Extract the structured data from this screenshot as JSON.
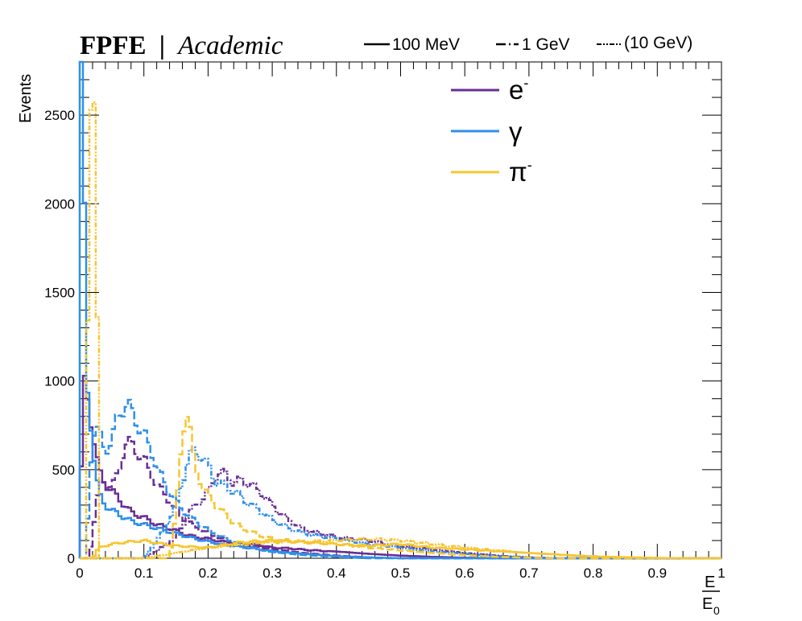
{
  "header": {
    "brand_bold": "FPFE",
    "brand_separator": "|",
    "brand_italic": "Academic"
  },
  "energy_legend": [
    {
      "label": "100 MeV",
      "style": "solid"
    },
    {
      "label": "1 GeV",
      "style": "dashed"
    },
    {
      "label": "(10 GeV)",
      "style": "dashdot"
    }
  ],
  "particle_legend": [
    {
      "label": "e",
      "sup": "-",
      "color": "#6a2f96"
    },
    {
      "label": "γ",
      "sup": "",
      "color": "#2f8fe8"
    },
    {
      "label": "π",
      "sup": "-",
      "color": "#f6c531"
    }
  ],
  "chart_data": {
    "type": "line",
    "title": "",
    "xlabel": "E",
    "xlabel_denominator": "E",
    "xlabel_denominator_sub": "0",
    "ylabel": "Events",
    "xlim": [
      0,
      1
    ],
    "ylim": [
      0,
      2800
    ],
    "xticks": [
      0,
      0.1,
      0.2,
      0.3,
      0.4,
      0.5,
      0.6,
      0.7,
      0.8,
      0.9,
      1
    ],
    "xtick_labels": [
      "0",
      "0.1",
      "0.2",
      "0.3",
      "0.4",
      "0.5",
      "0.6",
      "0.7",
      "0.8",
      "0.9",
      "1"
    ],
    "yticks": [
      0,
      500,
      1000,
      1500,
      2000,
      2500
    ],
    "ytick_labels": [
      "0",
      "500",
      "1000",
      "1500",
      "2000",
      "2500"
    ],
    "bin_width": 0.005,
    "series": [
      {
        "particle": "e-",
        "energy": "100 MeV",
        "style": "solid",
        "color": "#6a2f96",
        "points": [
          [
            0,
            0
          ],
          [
            0.005,
            1000
          ],
          [
            0.01,
            950
          ],
          [
            0.015,
            850
          ],
          [
            0.02,
            720
          ],
          [
            0.025,
            600
          ],
          [
            0.03,
            490
          ],
          [
            0.04,
            420
          ],
          [
            0.05,
            380
          ],
          [
            0.06,
            340
          ],
          [
            0.07,
            300
          ],
          [
            0.08,
            260
          ],
          [
            0.1,
            230
          ],
          [
            0.12,
            190
          ],
          [
            0.14,
            170
          ],
          [
            0.16,
            140
          ],
          [
            0.18,
            120
          ],
          [
            0.2,
            110
          ],
          [
            0.22,
            95
          ],
          [
            0.25,
            85
          ],
          [
            0.28,
            75
          ],
          [
            0.3,
            60
          ],
          [
            0.33,
            55
          ],
          [
            0.36,
            45
          ],
          [
            0.4,
            38
          ],
          [
            0.45,
            25
          ],
          [
            0.5,
            15
          ],
          [
            0.55,
            8
          ],
          [
            0.6,
            3
          ],
          [
            0.65,
            0
          ],
          [
            1,
            0
          ]
        ]
      },
      {
        "particle": "e-",
        "energy": "1 GeV",
        "style": "dashed",
        "color": "#6a2f96",
        "points": [
          [
            0,
            0
          ],
          [
            0.015,
            0
          ],
          [
            0.02,
            140
          ],
          [
            0.025,
            280
          ],
          [
            0.03,
            400
          ],
          [
            0.035,
            440
          ],
          [
            0.04,
            430
          ],
          [
            0.05,
            400
          ],
          [
            0.06,
            480
          ],
          [
            0.07,
            640
          ],
          [
            0.08,
            650
          ],
          [
            0.09,
            600
          ],
          [
            0.1,
            560
          ],
          [
            0.11,
            480
          ],
          [
            0.12,
            420
          ],
          [
            0.13,
            370
          ],
          [
            0.14,
            320
          ],
          [
            0.15,
            270
          ],
          [
            0.16,
            230
          ],
          [
            0.18,
            180
          ],
          [
            0.2,
            140
          ],
          [
            0.22,
            110
          ],
          [
            0.25,
            80
          ],
          [
            0.3,
            50
          ],
          [
            0.35,
            30
          ],
          [
            0.4,
            15
          ],
          [
            0.45,
            5
          ],
          [
            0.5,
            0
          ],
          [
            1,
            0
          ]
        ]
      },
      {
        "particle": "e-",
        "energy": "(10 GeV)",
        "style": "dashdot",
        "color": "#6a2f96",
        "points": [
          [
            0,
            0
          ],
          [
            0.1,
            0
          ],
          [
            0.12,
            40
          ],
          [
            0.15,
            120
          ],
          [
            0.17,
            250
          ],
          [
            0.18,
            300
          ],
          [
            0.2,
            360
          ],
          [
            0.21,
            460
          ],
          [
            0.22,
            480
          ],
          [
            0.23,
            470
          ],
          [
            0.24,
            420
          ],
          [
            0.25,
            440
          ],
          [
            0.26,
            430
          ],
          [
            0.28,
            380
          ],
          [
            0.3,
            300
          ],
          [
            0.32,
            230
          ],
          [
            0.35,
            160
          ],
          [
            0.4,
            120
          ],
          [
            0.45,
            100
          ],
          [
            0.5,
            70
          ],
          [
            0.55,
            50
          ],
          [
            0.6,
            30
          ],
          [
            0.65,
            15
          ],
          [
            0.7,
            5
          ],
          [
            0.75,
            0
          ],
          [
            1,
            0
          ]
        ]
      },
      {
        "particle": "gamma",
        "energy": "100 MeV",
        "style": "solid",
        "color": "#2f8fe8",
        "points": [
          [
            0,
            2800
          ],
          [
            0.005,
            2800
          ],
          [
            0.01,
            1000
          ],
          [
            0.015,
            880
          ],
          [
            0.02,
            650
          ],
          [
            0.025,
            480
          ],
          [
            0.03,
            360
          ],
          [
            0.04,
            300
          ],
          [
            0.05,
            270
          ],
          [
            0.06,
            250
          ],
          [
            0.07,
            230
          ],
          [
            0.08,
            210
          ],
          [
            0.1,
            190
          ],
          [
            0.12,
            170
          ],
          [
            0.14,
            150
          ],
          [
            0.16,
            130
          ],
          [
            0.18,
            110
          ],
          [
            0.2,
            95
          ],
          [
            0.22,
            80
          ],
          [
            0.25,
            65
          ],
          [
            0.28,
            50
          ],
          [
            0.3,
            40
          ],
          [
            0.35,
            25
          ],
          [
            0.4,
            12
          ],
          [
            0.45,
            5
          ],
          [
            0.5,
            0
          ],
          [
            1,
            0
          ]
        ]
      },
      {
        "particle": "gamma",
        "energy": "1 GeV",
        "style": "dashed",
        "color": "#2f8fe8",
        "points": [
          [
            0,
            0
          ],
          [
            0.01,
            0
          ],
          [
            0.015,
            450
          ],
          [
            0.02,
            700
          ],
          [
            0.025,
            720
          ],
          [
            0.03,
            700
          ],
          [
            0.04,
            620
          ],
          [
            0.05,
            650
          ],
          [
            0.06,
            820
          ],
          [
            0.07,
            860
          ],
          [
            0.08,
            840
          ],
          [
            0.09,
            760
          ],
          [
            0.1,
            700
          ],
          [
            0.11,
            620
          ],
          [
            0.12,
            520
          ],
          [
            0.13,
            440
          ],
          [
            0.14,
            380
          ],
          [
            0.15,
            320
          ],
          [
            0.16,
            270
          ],
          [
            0.18,
            210
          ],
          [
            0.2,
            160
          ],
          [
            0.22,
            120
          ],
          [
            0.25,
            80
          ],
          [
            0.28,
            50
          ],
          [
            0.3,
            35
          ],
          [
            0.35,
            18
          ],
          [
            0.4,
            8
          ],
          [
            0.45,
            0
          ],
          [
            1,
            0
          ]
        ]
      },
      {
        "particle": "gamma",
        "energy": "(10 GeV)",
        "style": "dashdot",
        "color": "#2f8fe8",
        "points": [
          [
            0,
            0
          ],
          [
            0.1,
            0
          ],
          [
            0.13,
            150
          ],
          [
            0.15,
            300
          ],
          [
            0.16,
            430
          ],
          [
            0.17,
            580
          ],
          [
            0.18,
            600
          ],
          [
            0.19,
            580
          ],
          [
            0.2,
            520
          ],
          [
            0.21,
            440
          ],
          [
            0.22,
            420
          ],
          [
            0.24,
            380
          ],
          [
            0.26,
            320
          ],
          [
            0.28,
            270
          ],
          [
            0.3,
            220
          ],
          [
            0.32,
            180
          ],
          [
            0.35,
            140
          ],
          [
            0.4,
            110
          ],
          [
            0.45,
            80
          ],
          [
            0.5,
            60
          ],
          [
            0.55,
            40
          ],
          [
            0.6,
            25
          ],
          [
            0.65,
            12
          ],
          [
            0.7,
            4
          ],
          [
            0.75,
            0
          ],
          [
            1,
            0
          ]
        ]
      },
      {
        "particle": "pi-",
        "energy": "100 MeV",
        "style": "solid",
        "color": "#f6c531",
        "points": [
          [
            0,
            0
          ],
          [
            0.02,
            0
          ],
          [
            0.03,
            60
          ],
          [
            0.05,
            80
          ],
          [
            0.07,
            90
          ],
          [
            0.1,
            100
          ],
          [
            0.13,
            80
          ],
          [
            0.15,
            70
          ],
          [
            0.2,
            60
          ],
          [
            0.25,
            90
          ],
          [
            0.3,
            100
          ],
          [
            0.35,
            90
          ],
          [
            0.4,
            80
          ],
          [
            0.45,
            70
          ],
          [
            0.5,
            80
          ],
          [
            0.55,
            60
          ],
          [
            0.6,
            50
          ],
          [
            0.65,
            40
          ],
          [
            0.7,
            30
          ],
          [
            0.75,
            20
          ],
          [
            0.8,
            10
          ],
          [
            0.85,
            5
          ],
          [
            0.9,
            2
          ],
          [
            0.95,
            0
          ],
          [
            1,
            0
          ]
        ]
      },
      {
        "particle": "pi-",
        "energy": "1 GeV",
        "style": "dashed",
        "color": "#f6c531",
        "points": [
          [
            0,
            0
          ],
          [
            0.14,
            0
          ],
          [
            0.15,
            250
          ],
          [
            0.16,
            700
          ],
          [
            0.165,
            820
          ],
          [
            0.17,
            820
          ],
          [
            0.175,
            600
          ],
          [
            0.18,
            520
          ],
          [
            0.19,
            420
          ],
          [
            0.2,
            350
          ],
          [
            0.22,
            270
          ],
          [
            0.24,
            200
          ],
          [
            0.26,
            160
          ],
          [
            0.28,
            130
          ],
          [
            0.3,
            110
          ],
          [
            0.33,
            100
          ],
          [
            0.36,
            90
          ],
          [
            0.4,
            80
          ],
          [
            0.45,
            60
          ],
          [
            0.5,
            45
          ],
          [
            0.55,
            30
          ],
          [
            0.6,
            18
          ],
          [
            0.65,
            8
          ],
          [
            0.7,
            3
          ],
          [
            0.75,
            0
          ],
          [
            1,
            0
          ]
        ]
      },
      {
        "particle": "pi-",
        "energy": "(10 GeV)",
        "style": "dashdot",
        "color": "#f6c531",
        "points": [
          [
            0,
            0
          ],
          [
            0.01,
            0
          ],
          [
            0.015,
            2700
          ],
          [
            0.02,
            2680
          ],
          [
            0.025,
            2600
          ],
          [
            0.03,
            0
          ],
          [
            0.1,
            0
          ],
          [
            0.15,
            30
          ],
          [
            0.2,
            60
          ],
          [
            0.3,
            90
          ],
          [
            0.4,
            100
          ],
          [
            0.45,
            110
          ],
          [
            0.5,
            100
          ],
          [
            0.55,
            80
          ],
          [
            0.6,
            60
          ],
          [
            0.65,
            45
          ],
          [
            0.7,
            30
          ],
          [
            0.75,
            20
          ],
          [
            0.8,
            12
          ],
          [
            0.85,
            6
          ],
          [
            0.9,
            2
          ],
          [
            0.95,
            0
          ],
          [
            1,
            0
          ]
        ]
      }
    ]
  }
}
